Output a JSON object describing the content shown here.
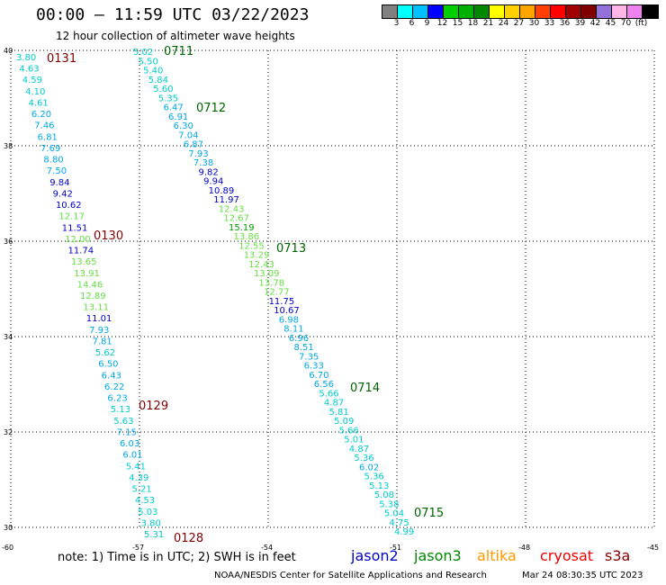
{
  "title": "00:00 – 11:59 UTC 03/22/2023",
  "subtitle": "12 hour collection of altimeter wave heights",
  "legend": {
    "colors": [
      "#808080",
      "#00ffff",
      "#00bfff",
      "#0000ff",
      "#00d000",
      "#00b000",
      "#008800",
      "#ffff00",
      "#ffd000",
      "#ffa500",
      "#ff4000",
      "#ff0000",
      "#a00000",
      "#800000",
      "#9370db",
      "#ffb6e6",
      "#ee82ee",
      "#000000"
    ],
    "labels": [
      "3",
      "6",
      "9",
      "12",
      "15",
      "18",
      "21",
      "24",
      "27",
      "30",
      "33",
      "36",
      "39",
      "42",
      "45",
      "70",
      "(ft)"
    ]
  },
  "axes": {
    "lon_ticks": [
      "-60",
      "-57",
      "-54",
      "-51",
      "-48",
      "-45"
    ],
    "lat_ticks": [
      "40",
      "38",
      "36",
      "34",
      "32",
      "30"
    ]
  },
  "passes": [
    {
      "label": "0131",
      "color": "#800000"
    },
    {
      "label": "0130",
      "color": "#800000"
    },
    {
      "label": "0129",
      "color": "#800000"
    },
    {
      "label": "0128",
      "color": "#800000"
    },
    {
      "label": "0711",
      "color": "#006400"
    },
    {
      "label": "0712",
      "color": "#006400"
    },
    {
      "label": "0713",
      "color": "#006400"
    },
    {
      "label": "0714",
      "color": "#006400"
    },
    {
      "label": "0715",
      "color": "#006400"
    }
  ],
  "track1": {
    "values": [
      "3.80",
      "4.63",
      "4.59",
      "4.10",
      "4.61",
      "6.20",
      "7.46",
      "6.81",
      "7.69",
      "8.80",
      "7.50",
      "9.84",
      "9.42",
      "10.62",
      "12.17",
      "11.51",
      "12.00",
      "11.74",
      "13.65",
      "13.91",
      "14.46",
      "12.89",
      "13.11",
      "11.01",
      "7.93",
      "7.81",
      "5.62",
      "6.50",
      "6.43",
      "6.22",
      "6.23",
      "5.13",
      "5.63",
      "7.15",
      "6.03",
      "6.01",
      "5.41",
      "4.39",
      "5.21",
      "4.53",
      "5.03",
      "3.80",
      "5.31"
    ]
  },
  "track2": {
    "values": [
      "5.02",
      "5.50",
      "5.40",
      "5.84",
      "5.60",
      "5.35",
      "6.47",
      "6.91",
      "6.30",
      "7.04",
      "6.87",
      "7.93",
      "7.38",
      "9.82",
      "9.94",
      "10.89",
      "11.97",
      "12.43",
      "12.67",
      "15.19",
      "13.86",
      "12.55",
      "13.29",
      "12.43",
      "13.09",
      "13.78",
      "12.77",
      "11.75",
      "10.67",
      "6.98",
      "8.11",
      "6.96",
      "8.51",
      "7.35",
      "6.33",
      "6.70",
      "6.56",
      "5.66",
      "4.87",
      "5.81",
      "5.09",
      "5.66",
      "5.01",
      "4.87",
      "5.36",
      "6.02",
      "5.36",
      "5.13",
      "5.08",
      "5.38",
      "5.04",
      "4.75",
      "4.99"
    ]
  },
  "note": "note:  1) Time is in UTC;  2) SWH is in feet",
  "satellites": [
    {
      "name": "jason2",
      "color": "#0000cc"
    },
    {
      "name": "jason3",
      "color": "#008800"
    },
    {
      "name": "altika",
      "color": "#ff9900"
    },
    {
      "name": "cryosat",
      "color": "#ee0000"
    },
    {
      "name": "s3a",
      "color": "#880000"
    }
  ],
  "credit": "NOAA/NESDIS Center for Satellite Applications and Research",
  "timestamp": "Mar 24 08:30:35 UTC 2023"
}
